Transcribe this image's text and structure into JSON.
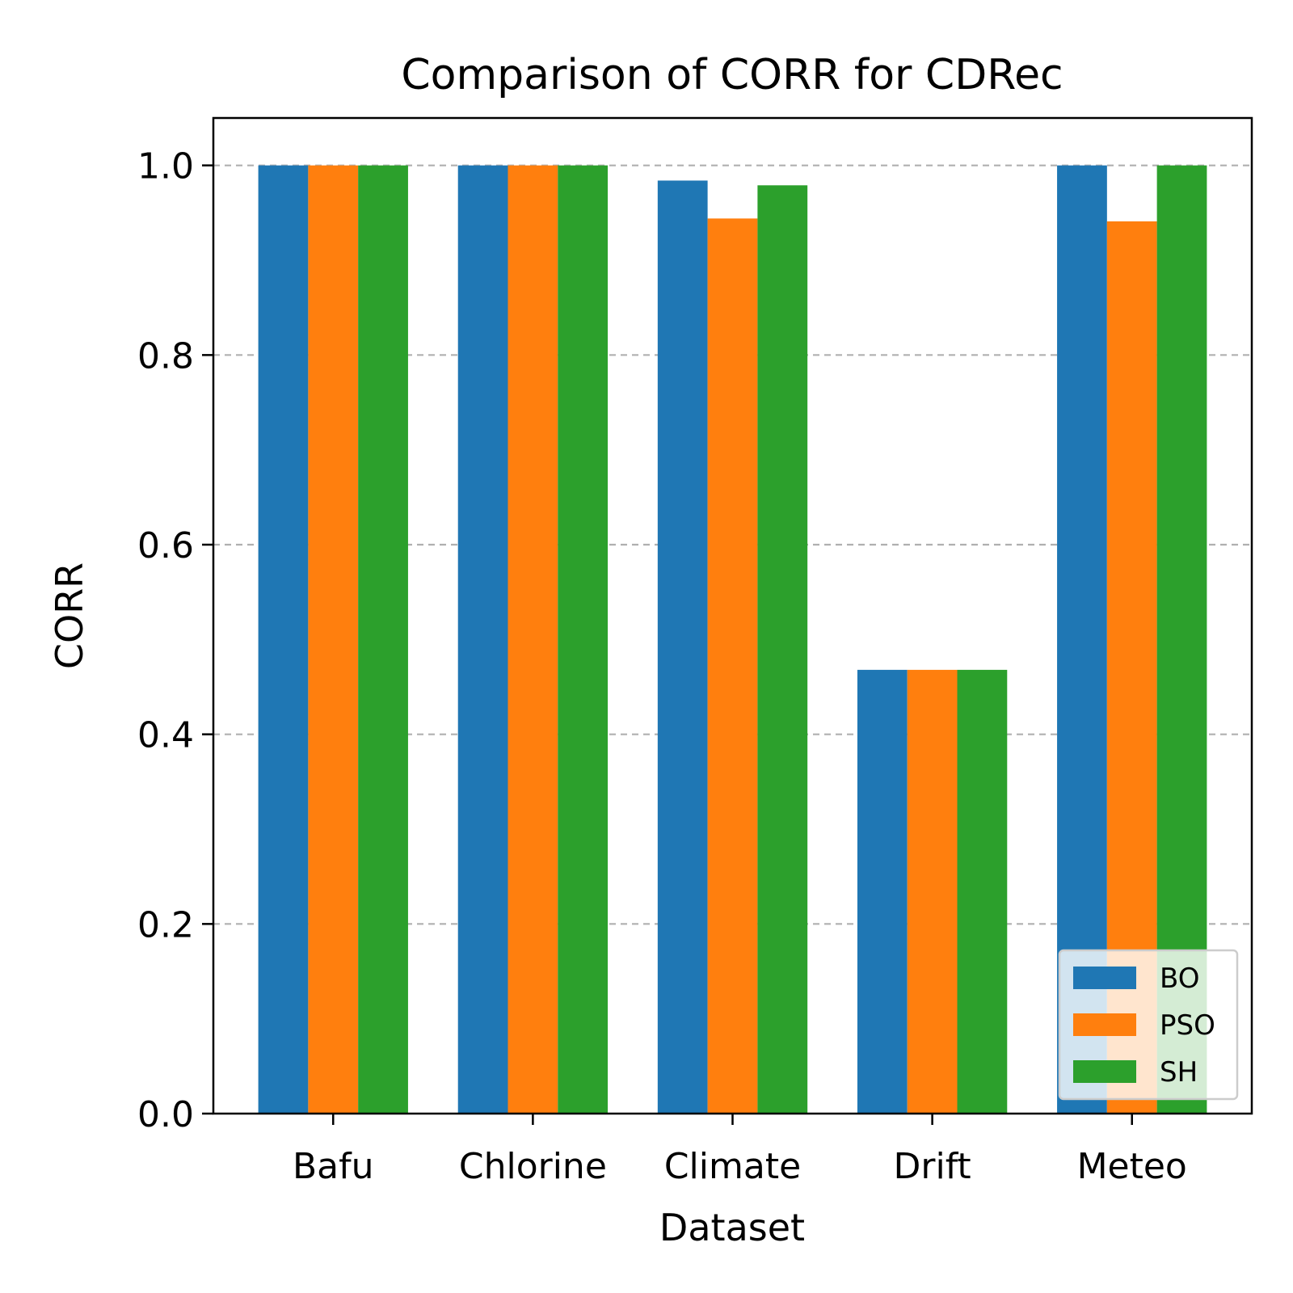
{
  "chart_data": {
    "type": "bar",
    "title": "Comparison of CORR for CDRec",
    "xlabel": "Dataset",
    "ylabel": "CORR",
    "categories": [
      "Bafu",
      "Chlorine",
      "Climate",
      "Drift",
      "Meteo"
    ],
    "series": [
      {
        "name": "BO",
        "values": [
          1.0,
          1.0,
          0.984,
          0.468,
          1.0
        ],
        "color": "#1f77b4"
      },
      {
        "name": "PSO",
        "values": [
          1.0,
          1.0,
          0.944,
          0.468,
          0.941
        ],
        "color": "#ff7f0e"
      },
      {
        "name": "SH",
        "values": [
          1.0,
          1.0,
          0.979,
          0.468,
          1.0
        ],
        "color": "#2ca02c"
      }
    ],
    "ylim": [
      0,
      1.05
    ],
    "yticks": [
      "0.0",
      "0.2",
      "0.4",
      "0.6",
      "0.8",
      "1.0"
    ],
    "grid": "y-dashed",
    "legend_position": "lower-right"
  }
}
